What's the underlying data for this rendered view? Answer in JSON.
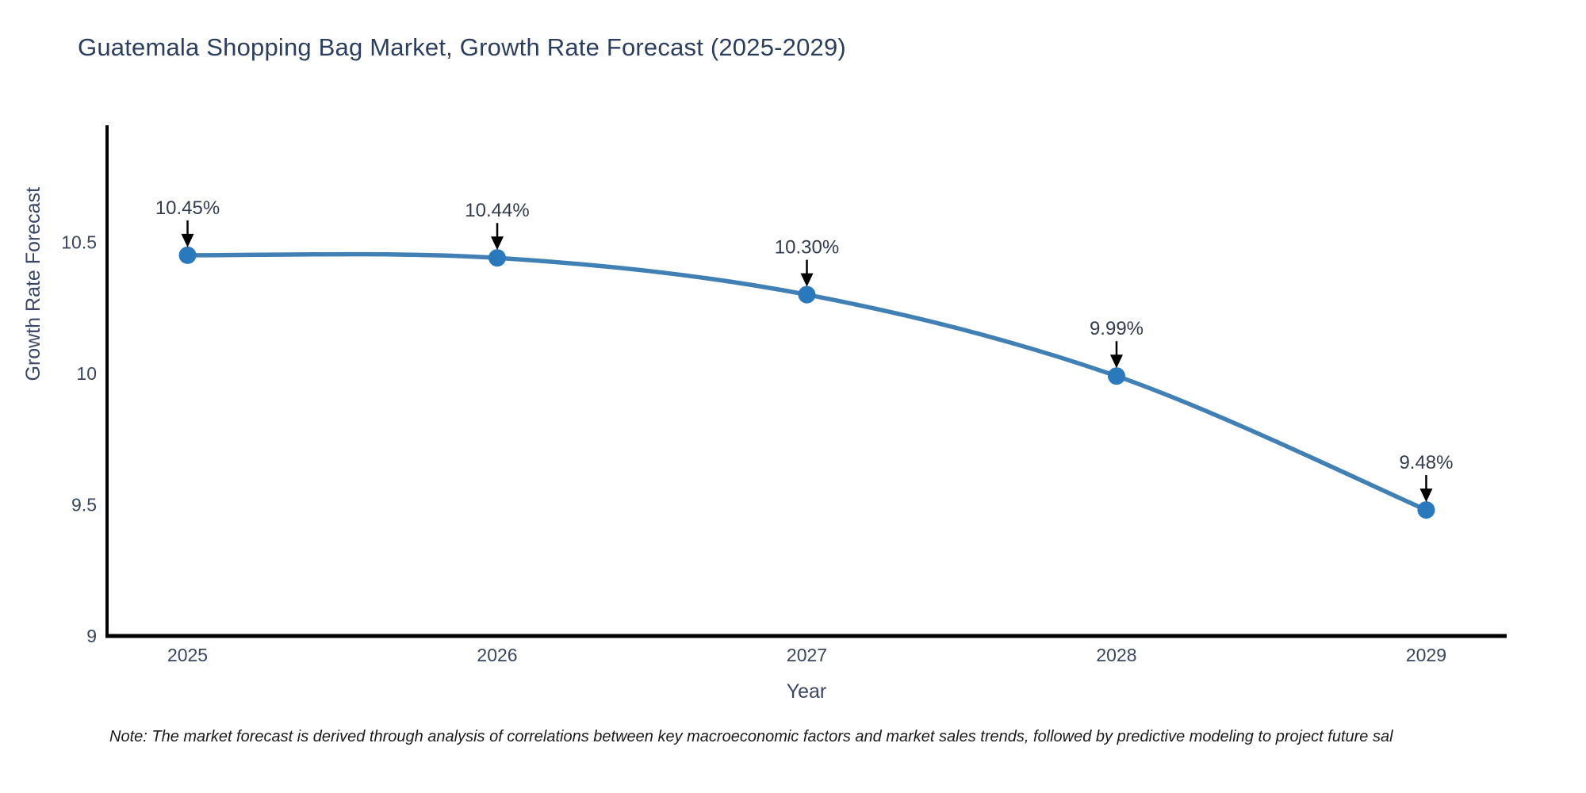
{
  "title": "Guatemala Shopping Bag Market, Growth Rate Forecast (2025-2029)",
  "note": "Note: The market forecast is derived through analysis of correlations between key macroeconomic factors and market sales trends, followed by predictive modeling to project future sal",
  "chart_data": {
    "type": "line",
    "title": "Guatemala Shopping Bag Market, Growth Rate Forecast (2025-2029)",
    "xlabel": "Year",
    "ylabel": "Growth Rate Forecast",
    "x": [
      2025,
      2026,
      2027,
      2028,
      2029
    ],
    "series": [
      {
        "name": "Growth Rate Forecast",
        "values": [
          10.45,
          10.44,
          10.3,
          9.99,
          9.48
        ]
      }
    ],
    "point_labels": [
      "10.45%",
      "10.44%",
      "10.30%",
      "9.99%",
      "9.48%"
    ],
    "annotation_style": "black-arrow-pointing-down-to-point",
    "xtick_labels": [
      "2025",
      "2026",
      "2027",
      "2028",
      "2029"
    ],
    "ytick_values": [
      9,
      9.5,
      10,
      10.5
    ],
    "ytick_labels": [
      "9",
      "9.5",
      "10",
      "10.5"
    ],
    "ylim": [
      9,
      10.945
    ],
    "xlim": [
      2024.74,
      2029.26
    ],
    "grid": false,
    "legend": false,
    "colors": {
      "line": "#4180b4",
      "marker": "#2b79bd",
      "arrow": "#000000",
      "axis_spine": "#000000",
      "title_text": "#2c3e5d",
      "tick_text": "#39465e",
      "annotation_text": "#333c4d",
      "note_text": "#1a1a1a",
      "background": "#ffffff"
    }
  }
}
